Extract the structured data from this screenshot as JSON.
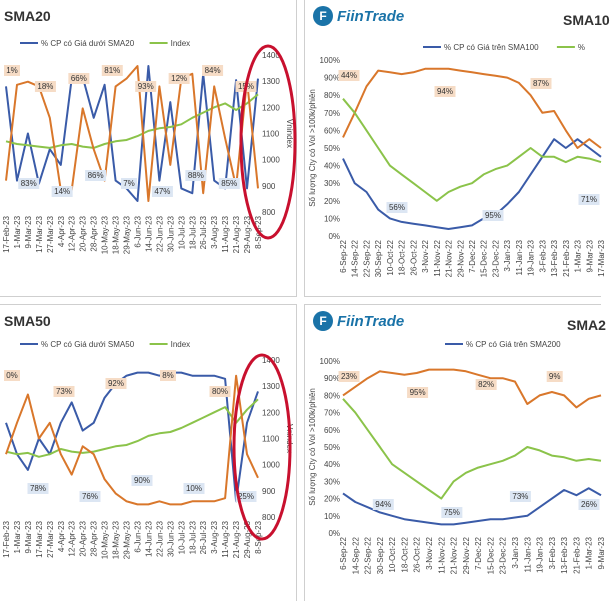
{
  "colors": {
    "blue": "#3a5ba8",
    "orange": "#d9772b",
    "green": "#8bc34a",
    "red": "#c8102e"
  },
  "logo_text": "FiinTrade",
  "chart_data": [
    {
      "type": "line",
      "title": "SMA20",
      "legend": [
        "% CP có Giá dưới SMA20",
        "Index"
      ],
      "x": [
        "17-Feb-23",
        "1-Mar-23",
        "9-Mar-23",
        "17-Mar-23",
        "27-Mar-23",
        "4-Apr-23",
        "12-Apr-23",
        "20-Apr-23",
        "28-Apr-23",
        "10-May-23",
        "18-May-23",
        "29-May-23",
        "6-Jun-23",
        "14-Jun-23",
        "22-Jun-23",
        "30-Jun-23",
        "10-Jul-23",
        "18-Jul-23",
        "26-Jul-23",
        "3-Aug-23",
        "11-Aug-23",
        "21-Aug-23",
        "29-Aug-23",
        "8-Sep-23"
      ],
      "ylabel_right": "Vnindex",
      "ylim_right": [
        800,
        1400
      ],
      "yticks_right": [
        "800",
        "900",
        "1000",
        "1100",
        "1200",
        "1300",
        "1400"
      ],
      "series": [
        {
          "name": "% CP có Giá dưới SMA20",
          "color": "blue",
          "values": [
            0.8,
            0.2,
            0.5,
            0.18,
            0.4,
            0.3,
            0.85,
            0.86,
            0.6,
            0.81,
            0.2,
            0.15,
            0.07,
            0.93,
            0.2,
            0.7,
            0.15,
            0.12,
            0.88,
            0.2,
            0.15,
            0.84,
            0.15,
            0.85
          ]
        },
        {
          "name": "Index",
          "color": "green",
          "values": [
            1070,
            1060,
            1055,
            1050,
            1045,
            1055,
            1060,
            1050,
            1045,
            1060,
            1070,
            1075,
            1090,
            1110,
            1120,
            1125,
            1135,
            1160,
            1180,
            1200,
            1215,
            1190,
            1215,
            1250
          ]
        },
        {
          "name": "orange",
          "color": "orange",
          "values": [
            0.2,
            0.81,
            0.83,
            0.8,
            0.6,
            0.14,
            0.14,
            0.66,
            0.4,
            0.2,
            0.8,
            0.85,
            0.93,
            0.07,
            0.8,
            0.3,
            0.85,
            0.88,
            0.12,
            0.8,
            0.47,
            0.16,
            0.84,
            0.15
          ]
        }
      ],
      "annotations": [
        "1%",
        "83%",
        "18%",
        "14%",
        "66%",
        "86%",
        "81%",
        "7%",
        "93%",
        "47%",
        "12%",
        "88%",
        "84%",
        "85%",
        "15%"
      ]
    },
    {
      "type": "line",
      "title": "SMA10",
      "legend": [
        "% CP có Giá trên SMA100",
        "%"
      ],
      "ylabel_left": "Số lượng Cty có Vol >100k/phiên",
      "yticks_left": [
        "0%",
        "10%",
        "20%",
        "30%",
        "40%",
        "50%",
        "60%",
        "70%",
        "80%",
        "90%",
        "100%"
      ],
      "x": [
        "6-Sep-22",
        "14-Sep-22",
        "22-Sep-22",
        "30-Sep-22",
        "10-Oct-22",
        "18-Oct-22",
        "26-Oct-22",
        "3-Nov-22",
        "11-Nov-22",
        "21-Nov-22",
        "29-Nov-22",
        "7-Dec-22",
        "15-Dec-22",
        "23-Dec-22",
        "3-Jan-23",
        "11-Jan-23",
        "19-Jan-23",
        "3-Feb-23",
        "13-Feb-23",
        "21-Feb-23",
        "1-Mar-23",
        "9-Mar-23",
        "17-Mar-23"
      ],
      "series": [
        {
          "name": "% CP có Giá trên SMA100",
          "color": "blue",
          "values": [
            0.44,
            0.3,
            0.25,
            0.15,
            0.1,
            0.08,
            0.07,
            0.06,
            0.05,
            0.04,
            0.05,
            0.06,
            0.1,
            0.12,
            0.18,
            0.25,
            0.35,
            0.45,
            0.55,
            0.5,
            0.55,
            0.5,
            0.45
          ]
        },
        {
          "name": "orange",
          "color": "orange",
          "values": [
            0.56,
            0.7,
            0.85,
            0.94,
            0.93,
            0.92,
            0.93,
            0.95,
            0.95,
            0.95,
            0.94,
            0.93,
            0.92,
            0.91,
            0.9,
            0.87,
            0.8,
            0.7,
            0.71,
            0.6,
            0.5,
            0.55,
            0.5
          ]
        },
        {
          "name": "green",
          "color": "green",
          "values": [
            0.78,
            0.7,
            0.6,
            0.5,
            0.4,
            0.35,
            0.3,
            0.25,
            0.2,
            0.25,
            0.28,
            0.3,
            0.35,
            0.38,
            0.4,
            0.45,
            0.5,
            0.45,
            0.45,
            0.42,
            0.45,
            0.44,
            0.42
          ]
        }
      ],
      "annotations": [
        "44%",
        "56%",
        "94%",
        "95%",
        "87%",
        "71%"
      ]
    },
    {
      "type": "line",
      "title": "SMA50",
      "legend": [
        "% CP có Giá dưới SMA50",
        "Index"
      ],
      "ylabel_right": "Vnindex",
      "yticks_right": [
        "800",
        "900",
        "1000",
        "1100",
        "1200",
        "1300",
        "1400"
      ],
      "x": [
        "17-Feb-23",
        "1-Mar-23",
        "9-Mar-23",
        "17-Mar-23",
        "27-Mar-23",
        "4-Apr-23",
        "12-Apr-23",
        "20-Apr-23",
        "28-Apr-23",
        "10-May-23",
        "18-May-23",
        "29-May-23",
        "6-Jun-23",
        "14-Jun-23",
        "22-Jun-23",
        "30-Jun-23",
        "10-Jul-23",
        "18-Jul-23",
        "26-Jul-23",
        "3-Aug-23",
        "11-Aug-23",
        "21-Aug-23",
        "29-Aug-23",
        "8-Sep-23"
      ],
      "series": [
        {
          "name": "% CP có Giá dưới SMA50",
          "color": "blue",
          "values": [
            0.6,
            0.4,
            0.3,
            0.5,
            0.4,
            0.6,
            0.73,
            0.55,
            0.6,
            0.76,
            0.85,
            0.9,
            0.92,
            0.92,
            0.9,
            0.92,
            0.92,
            0.9,
            0.9,
            0.9,
            0.88,
            0.1,
            0.6,
            0.8
          ]
        },
        {
          "name": "Index",
          "color": "green",
          "values": [
            1050,
            1040,
            1045,
            1030,
            1040,
            1060,
            1050,
            1045,
            1050,
            1060,
            1070,
            1075,
            1090,
            1110,
            1120,
            1125,
            1140,
            1160,
            1180,
            1200,
            1220,
            1160,
            1210,
            1250
          ]
        },
        {
          "name": "orange",
          "color": "orange",
          "values": [
            0.4,
            0.6,
            0.78,
            0.5,
            0.6,
            0.4,
            0.27,
            0.45,
            0.4,
            0.24,
            0.15,
            0.1,
            0.08,
            0.08,
            0.1,
            0.08,
            0.08,
            0.1,
            0.1,
            0.1,
            0.12,
            0.9,
            0.4,
            0.25
          ]
        }
      ],
      "annotations": [
        "0%",
        "78%",
        "73%",
        "76%",
        "92%",
        "90%",
        "8%",
        "10%",
        "80%",
        "25%"
      ]
    },
    {
      "type": "line",
      "title": "SMA2",
      "legend": [
        "% CP có Giá trên SMA200"
      ],
      "ylabel_left": "Số lượng Cty có Vol >100k/phiên",
      "yticks_left": [
        "0%",
        "10%",
        "20%",
        "30%",
        "40%",
        "50%",
        "60%",
        "70%",
        "80%",
        "90%",
        "100%"
      ],
      "x": [
        "6-Sep-22",
        "14-Sep-22",
        "22-Sep-22",
        "30-Sep-22",
        "10-Oct-22",
        "18-Oct-22",
        "26-Oct-22",
        "3-Nov-22",
        "11-Nov-22",
        "21-Nov-22",
        "29-Nov-22",
        "7-Dec-22",
        "15-Dec-22",
        "23-Dec-22",
        "3-Jan-23",
        "11-Jan-23",
        "19-Jan-23",
        "3-Feb-23",
        "13-Feb-23",
        "21-Feb-23",
        "1-Mar-23",
        "9-Mar-23"
      ],
      "series": [
        {
          "name": "% CP có Giá trên SMA200",
          "color": "blue",
          "values": [
            0.23,
            0.18,
            0.15,
            0.12,
            0.1,
            0.08,
            0.07,
            0.06,
            0.05,
            0.05,
            0.06,
            0.07,
            0.08,
            0.08,
            0.09,
            0.1,
            0.15,
            0.2,
            0.25,
            0.22,
            0.26,
            0.22
          ]
        },
        {
          "name": "orange",
          "color": "orange",
          "values": [
            0.8,
            0.85,
            0.9,
            0.94,
            0.93,
            0.92,
            0.93,
            0.95,
            0.95,
            0.95,
            0.94,
            0.92,
            0.9,
            0.9,
            0.88,
            0.75,
            0.8,
            0.82,
            0.8,
            0.73,
            0.78,
            0.8
          ]
        },
        {
          "name": "green",
          "color": "green",
          "values": [
            0.78,
            0.7,
            0.6,
            0.5,
            0.4,
            0.35,
            0.3,
            0.25,
            0.2,
            0.3,
            0.35,
            0.38,
            0.4,
            0.42,
            0.45,
            0.5,
            0.48,
            0.45,
            0.44,
            0.42,
            0.43,
            0.42
          ]
        }
      ],
      "annotations": [
        "23%",
        "94%",
        "95%",
        "75%",
        "82%",
        "73%",
        "9%",
        "26%"
      ]
    }
  ]
}
